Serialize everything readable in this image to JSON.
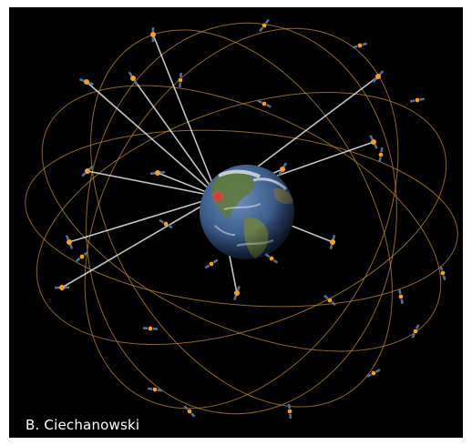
{
  "credit": "B. Ciechanowski",
  "colors": {
    "background": "#000000",
    "orbit": "#b8893a",
    "signal_line": "#e6e6e6",
    "satellite_body": "#f0a030",
    "solar_panel": "#5a6e8c",
    "receiver": "#ff2a2a",
    "ocean": "#3c5c8a",
    "land": "#5f7a3e",
    "cloud": "#e8eef5"
  },
  "icons": {
    "satellite": "satellite-icon",
    "receiver": "receiver-marker-icon",
    "earth": "earth-globe-icon"
  }
}
